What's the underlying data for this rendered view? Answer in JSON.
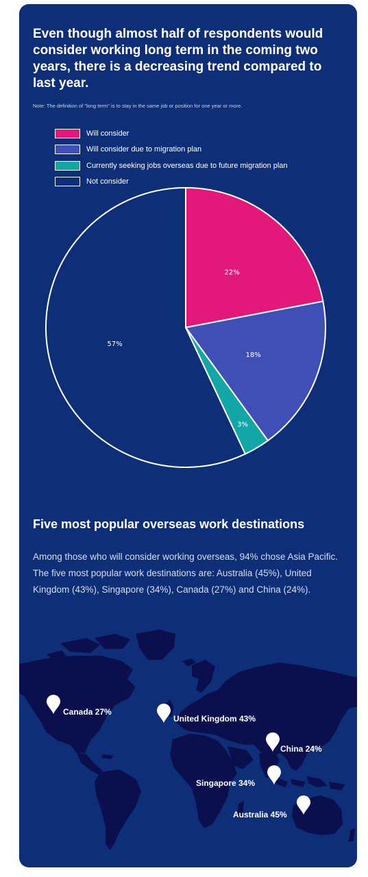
{
  "infographic": {
    "title": "Even though almost half of respondents would consider working long term in the coming two years, there is a decreasing trend compared to last year.",
    "note": "Note: The definition of \"long term\" is to stay in the same job or position for one year or more."
  },
  "chart_data": {
    "type": "pie",
    "title": "",
    "legend_placement": "top-left",
    "slices": [
      {
        "label": "Will consider",
        "value": 22,
        "display": "22%",
        "color": "#e2197a"
      },
      {
        "label": "Will consider due to migration plan",
        "value": 18,
        "display": "18%",
        "color": "#3f4fb5"
      },
      {
        "label": "Currently seeking jobs overseas due to future migration plan",
        "value": 3,
        "display": "3%",
        "color": "#14a6a6"
      },
      {
        "label": "Not consider",
        "value": 57,
        "display": "57%",
        "color": "#0e2f78"
      }
    ]
  },
  "destinations": {
    "title": "Five most popular overseas work destinations",
    "description": "Among those who will consider working overseas, 94% chose Asia Pacific. The five most popular work destinations are: Australia (45%), United Kingdom (43%), Singapore (34%), Canada (27%) and China (24%).",
    "pins": [
      {
        "label": "Canada 27%",
        "icon": "map-pin-icon"
      },
      {
        "label": "United Kingdom 43%",
        "icon": "map-pin-icon"
      },
      {
        "label": "China 24%",
        "icon": "map-pin-icon"
      },
      {
        "label": "Singapore 34%",
        "icon": "map-pin-icon"
      },
      {
        "label": "Australia 45%",
        "icon": "map-pin-icon"
      }
    ]
  },
  "colors": {
    "background": "#0e2f78",
    "map_land": "#0b0f4d",
    "text": "#ffffff"
  }
}
